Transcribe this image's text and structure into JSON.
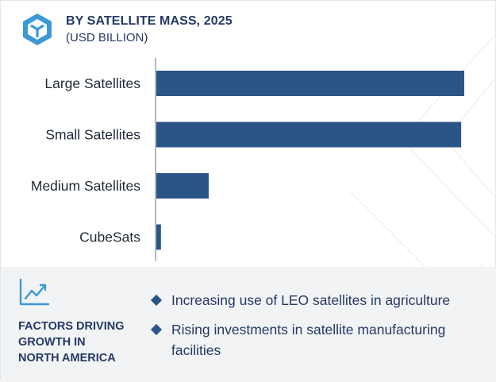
{
  "header": {
    "title": "BY SATELLITE MASS, 2025",
    "subtitle": "(USD BILLION)"
  },
  "chart_data": {
    "type": "bar",
    "orientation": "horizontal",
    "title": "BY SATELLITE MASS, 2025",
    "subtitle": "(USD BILLION)",
    "categories": [
      "Large Satellites",
      "Small Satellites",
      "Medium Satellites",
      "CubeSats"
    ],
    "values": [
      100,
      99,
      17,
      1.5
    ],
    "bar_color": "#2c5587",
    "grid": false,
    "legend": "none"
  },
  "footer": {
    "factors_lines": [
      "FACTORS DRIVING",
      "GROWTH IN",
      "NORTH AMERICA"
    ],
    "bullets": [
      "Increasing use of LEO satellites in agriculture",
      "Rising investments in satellite manufacturing facilities"
    ]
  },
  "colors": {
    "navy": "#243a63",
    "bar": "#2c5587",
    "accent": "#3b9ad6",
    "footer_bg": "#f2f3f5"
  },
  "icons": [
    "cube-logo-icon",
    "trend-line-icon",
    "diamond-bullet-icon"
  ]
}
